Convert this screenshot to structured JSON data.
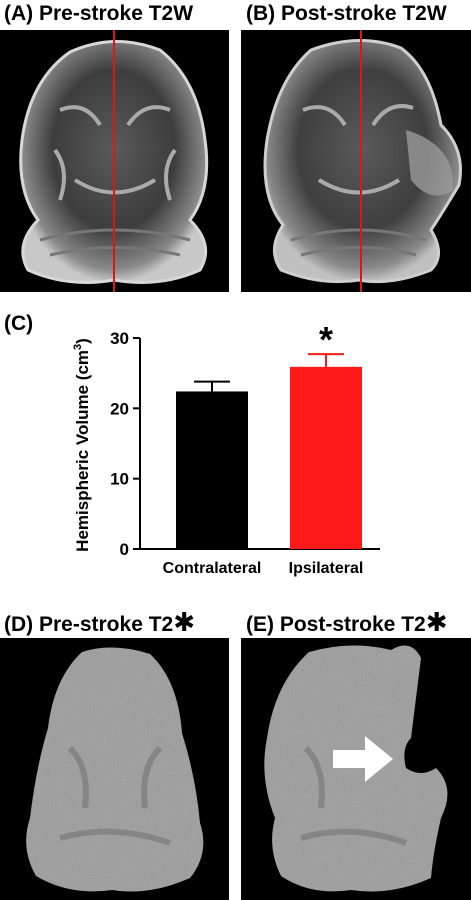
{
  "panels": {
    "a": {
      "label": "(A) Pre-stroke T2W"
    },
    "b": {
      "label": "(B) Post-stroke T2W"
    },
    "c": {
      "label": "(C)"
    },
    "d": {
      "label": "(D) Pre-stroke T2",
      "mark": "✱"
    },
    "e": {
      "label": "(E) Post-stroke T2",
      "mark": "✱"
    }
  },
  "colors": {
    "midline": "#e0141c",
    "bar_contra": "#000000",
    "bar_ipsi": "#ff1a1a"
  },
  "chart_data": {
    "type": "bar",
    "categories": [
      "Contralateral",
      "Ipsilateral"
    ],
    "values": [
      22.4,
      25.9
    ],
    "errors": [
      1.4,
      1.8
    ],
    "ylabel_prefix": "Hemispheric Volume (cm",
    "ylabel_sup": "3",
    "ylabel_suffix": ")",
    "ylim": [
      0,
      30
    ],
    "yticks": [
      0,
      10,
      20,
      30
    ],
    "significance": {
      "category": "Ipsilateral",
      "mark": "*"
    }
  }
}
